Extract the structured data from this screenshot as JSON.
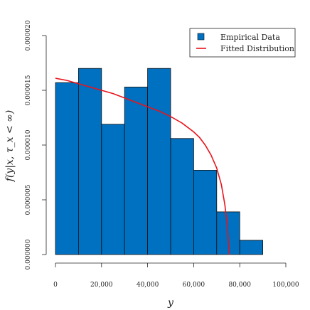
{
  "chart_data": {
    "type": "bar",
    "x_bins": [
      [
        0,
        10000
      ],
      [
        10000,
        20000
      ],
      [
        20000,
        30000
      ],
      [
        30000,
        40000
      ],
      [
        40000,
        50000
      ],
      [
        50000,
        60000
      ],
      [
        60000,
        70000
      ],
      [
        70000,
        80000
      ],
      [
        80000,
        90000
      ]
    ],
    "values": [
      1.57e-05,
      1.7e-05,
      1.19e-05,
      1.53e-05,
      1.7e-05,
      1.06e-05,
      7.7e-06,
      3.9e-06,
      1.3e-06
    ],
    "xlim": [
      0,
      100000
    ],
    "ylim": [
      0,
      2e-05
    ],
    "x_ticks": [
      0,
      20000,
      40000,
      60000,
      80000,
      100000
    ],
    "x_tick_labels": [
      "0",
      "20,000",
      "40,000",
      "60,000",
      "80,000",
      "100,000"
    ],
    "y_ticks": [
      0,
      5e-06,
      1e-05,
      1.5e-05,
      2e-05
    ],
    "y_tick_labels": [
      "0.000000",
      "0.000005",
      "0.000010",
      "0.000015",
      "0.000020"
    ],
    "xlabel": "y",
    "ylabel": "f(y|x, τ_x < ∞)",
    "grid": false,
    "legend_position": "top-right",
    "legend": [
      {
        "label": "Empirical Data",
        "kind": "box",
        "color": "#0070c0"
      },
      {
        "label": "Fitted Distribution",
        "kind": "line",
        "color": "#e8141c"
      }
    ],
    "fitted_curve": {
      "name": "Fitted Distribution",
      "color": "#e8141c",
      "x": [
        0,
        5000,
        10000,
        15000,
        20000,
        25000,
        30000,
        35000,
        40000,
        45000,
        50000,
        55000,
        60000,
        62500,
        65000,
        67500,
        70000,
        72000,
        73500,
        74500,
        75000,
        75300,
        75500
      ],
      "y": [
        1.61e-05,
        1.59e-05,
        1.56e-05,
        1.53e-05,
        1.5e-05,
        1.47e-05,
        1.43e-05,
        1.39e-05,
        1.35e-05,
        1.31e-05,
        1.26e-05,
        1.2e-05,
        1.12e-05,
        1.07e-05,
        1e-05,
        9.1e-06,
        7.9e-06,
        6.4e-06,
        4.6e-06,
        2.8e-06,
        1.4e-06,
        5e-07,
        0.0
      ]
    },
    "colors": {
      "bar_fill": "#0070c0",
      "bar_stroke": "#111111",
      "axis": "#222222",
      "curve": "#e8141c"
    }
  }
}
